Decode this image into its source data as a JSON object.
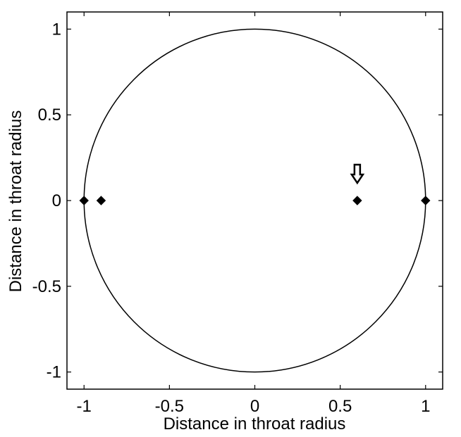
{
  "chart_data": {
    "type": "scatter",
    "xlabel": "Distance in throat radius",
    "ylabel": "Distance in throat radius",
    "xlim": [
      -1.1,
      1.1
    ],
    "ylim": [
      -1.1,
      1.1
    ],
    "x_ticks": [
      -1,
      -0.5,
      0,
      0.5,
      1
    ],
    "y_ticks": [
      -1,
      -0.5,
      0,
      0.5,
      1
    ],
    "x_tick_labels": [
      "-1",
      "-0.5",
      "0",
      "0.5",
      "1"
    ],
    "y_tick_labels": [
      "-1",
      "-0.5",
      "0",
      "0.5",
      "1"
    ],
    "grid": false,
    "circle": {
      "center": [
        0,
        0
      ],
      "radius": 1
    },
    "points": [
      {
        "x": -1.0,
        "y": 0
      },
      {
        "x": -0.9,
        "y": 0
      },
      {
        "x": 0.6,
        "y": 0
      },
      {
        "x": 1.0,
        "y": 0
      }
    ],
    "arrow": {
      "x": 0.6,
      "y": 0.11,
      "direction": "down"
    },
    "colors": {
      "line": "#000000",
      "marker": "#000000",
      "background": "#ffffff"
    }
  }
}
